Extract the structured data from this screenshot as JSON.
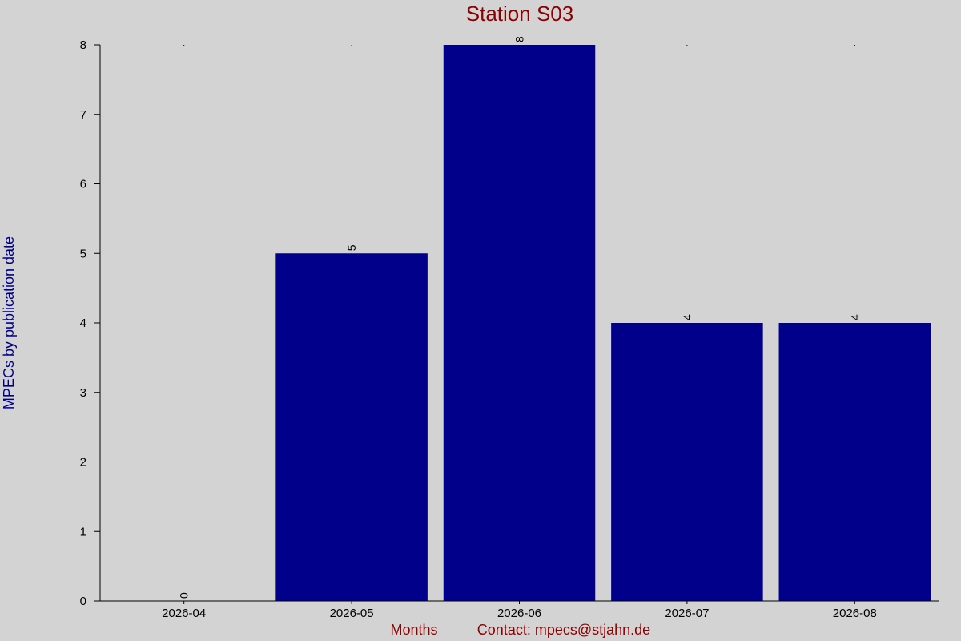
{
  "chart_data": {
    "type": "bar",
    "title": "Station S03",
    "xlabel": "Months",
    "ylabel": "MPECs by publication date",
    "contact": "Contact: mpecs@stjahn.de",
    "categories": [
      "2026-04",
      "2026-05",
      "2026-06",
      "2026-07",
      "2026-08"
    ],
    "values": [
      0,
      5,
      8,
      4,
      4
    ],
    "ylim": [
      0,
      8
    ],
    "yticks": [
      0,
      1,
      2,
      3,
      4,
      5,
      6,
      7,
      8
    ],
    "grid": false,
    "legend": "none",
    "colors": {
      "background": "#d3d3d3",
      "bar": "#00008b",
      "title": "#8b0000",
      "ylabel": "#00008b",
      "xlabel": "#8b0000"
    }
  }
}
